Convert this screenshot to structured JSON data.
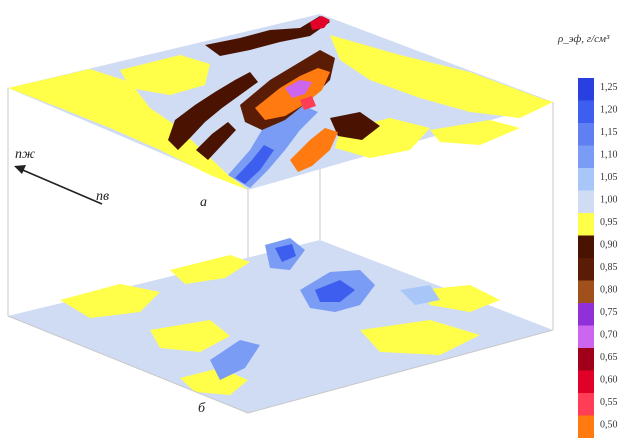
{
  "legend": {
    "title": "ρ_эф, г/см³",
    "entries": [
      {
        "label": "1,25",
        "color": "#2a3fe0"
      },
      {
        "label": "1,20",
        "color": "#3e5ef0"
      },
      {
        "label": "1,15",
        "color": "#5f7ff2"
      },
      {
        "label": "1,10",
        "color": "#7a9cf4"
      },
      {
        "label": "1,05",
        "color": "#a8c6f7"
      },
      {
        "label": "1,00",
        "color": "#cfdcf4"
      },
      {
        "label": "0,95",
        "color": "#ffff4a"
      },
      {
        "label": "0,90",
        "color": "#4a1200"
      },
      {
        "label": "0,85",
        "color": "#5a1c05"
      },
      {
        "label": "0,80",
        "color": "#a0501a"
      },
      {
        "label": "0,75",
        "color": "#9030d8"
      },
      {
        "label": "0,70",
        "color": "#cc66ee"
      },
      {
        "label": "0,65",
        "color": "#a0001a"
      },
      {
        "label": "0,60",
        "color": "#e00028"
      },
      {
        "label": "0,55",
        "color": "#ff3d55"
      },
      {
        "label": "0,50",
        "color": "#ff7a10"
      }
    ]
  },
  "axes": {
    "label1": "пж",
    "label2": "пв"
  },
  "panels": {
    "top_label": "а",
    "bottom_label": "б"
  },
  "colors": {
    "box_edge": "#cccccc",
    "background_top": "#cfdcf4",
    "background_bottom": "#cfdcf4"
  }
}
